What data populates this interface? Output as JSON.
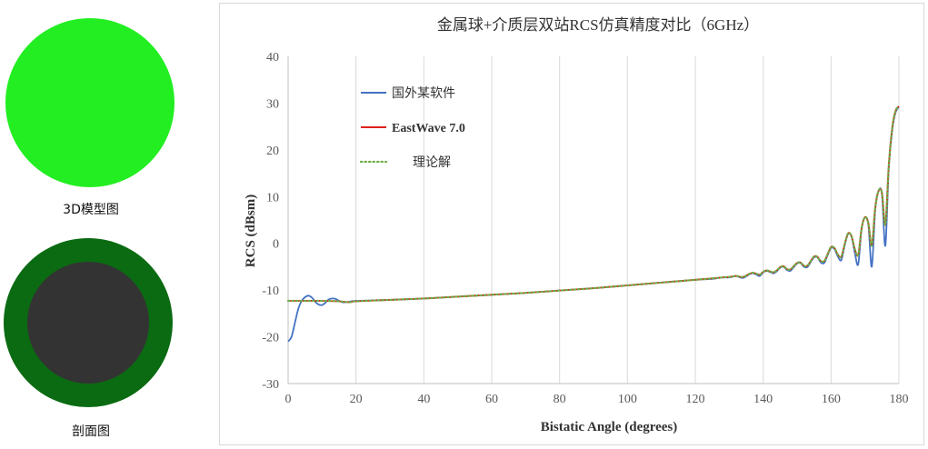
{
  "left_panel": {
    "model_caption": "3D模型图",
    "section_caption": "剖面图",
    "colors": {
      "sphere_outer": "#22ee22",
      "section_ring": "#0b6b12",
      "section_core": "#333333"
    }
  },
  "chart_data": {
    "type": "line",
    "title": "金属球+介质层双站RCS仿真精度对比（6GHz）",
    "xlabel": "Bistatic Angle (degrees)",
    "ylabel": "RCS (dBsm)",
    "xlim": [
      0,
      180
    ],
    "ylim": [
      -30,
      40
    ],
    "xticks": [
      0,
      20,
      40,
      60,
      80,
      100,
      120,
      140,
      160,
      180
    ],
    "yticks": [
      -30,
      -20,
      -10,
      0,
      10,
      20,
      30,
      40
    ],
    "grid": "vertical",
    "legend_position": "top-left",
    "series": [
      {
        "name": "国外某软件",
        "color": "#4472c4",
        "style": "solid",
        "x": [
          0,
          1,
          2,
          3,
          4,
          5,
          6,
          7,
          8,
          9,
          10,
          11,
          12,
          13,
          14,
          15,
          16,
          17,
          18,
          20,
          30,
          40,
          50,
          60,
          70,
          80,
          90,
          100,
          110,
          120,
          125,
          128,
          130,
          132,
          134,
          136,
          137,
          138,
          139,
          140,
          141,
          142,
          143,
          144,
          145,
          146,
          147,
          148,
          149,
          150,
          151,
          152,
          153,
          154,
          155,
          156,
          157,
          158,
          159,
          160,
          161,
          162,
          163,
          164,
          165,
          166,
          167,
          168,
          169,
          170,
          171,
          172,
          173,
          174,
          175,
          176,
          177,
          178,
          179,
          180
        ],
        "y": [
          -21,
          -20,
          -17,
          -14,
          -12.3,
          -11.5,
          -11.2,
          -11.6,
          -12.5,
          -13.1,
          -13.2,
          -12.7,
          -12.0,
          -11.8,
          -11.9,
          -12.3,
          -12.6,
          -12.6,
          -12.5,
          -12.3,
          -12.1,
          -11.8,
          -11.4,
          -11.0,
          -10.6,
          -10.1,
          -9.6,
          -9.0,
          -8.4,
          -7.8,
          -7.6,
          -7.3,
          -7.3,
          -7.0,
          -7.4,
          -6.6,
          -6.4,
          -6.7,
          -7.0,
          -6.2,
          -5.9,
          -6.1,
          -6.4,
          -6.0,
          -5.2,
          -5.0,
          -5.7,
          -5.9,
          -5.1,
          -4.3,
          -4.2,
          -5.0,
          -5.1,
          -4.0,
          -3.0,
          -3.0,
          -4.1,
          -4.2,
          -2.5,
          -1.0,
          -1.2,
          -2.8,
          -3.6,
          -0.5,
          2.0,
          1.5,
          -2.0,
          -4.5,
          3.0,
          5.5,
          4.0,
          -5.0,
          7.0,
          11.2,
          10.5,
          -0.5,
          16.0,
          24.0,
          28.0,
          29.2
        ]
      },
      {
        "name": "EastWave 7.0",
        "color": "#e0201b",
        "style": "solid",
        "x": [
          0,
          5,
          10,
          15,
          18,
          20,
          30,
          40,
          50,
          60,
          70,
          80,
          90,
          100,
          110,
          120,
          125,
          128,
          130,
          132,
          134,
          136,
          137,
          138,
          139,
          140,
          141,
          142,
          143,
          144,
          145,
          146,
          147,
          148,
          149,
          150,
          151,
          152,
          153,
          154,
          155,
          156,
          157,
          158,
          159,
          160,
          161,
          162,
          163,
          164,
          165,
          166,
          167,
          168,
          169,
          170,
          171,
          172,
          173,
          174,
          175,
          176,
          177,
          178,
          179,
          180
        ],
        "y": [
          -12.3,
          -12.3,
          -12.3,
          -12.4,
          -12.6,
          -12.4,
          -12.1,
          -11.8,
          -11.4,
          -11.0,
          -10.6,
          -10.1,
          -9.6,
          -9.0,
          -8.4,
          -7.8,
          -7.5,
          -7.3,
          -7.2,
          -7.0,
          -7.2,
          -6.5,
          -6.3,
          -6.5,
          -6.7,
          -6.1,
          -5.8,
          -6.0,
          -6.2,
          -5.8,
          -5.1,
          -4.9,
          -5.5,
          -5.6,
          -4.9,
          -4.2,
          -4.1,
          -4.8,
          -4.8,
          -3.8,
          -2.8,
          -2.9,
          -3.8,
          -3.8,
          -2.3,
          -0.8,
          -1.0,
          -2.4,
          -2.9,
          -0.2,
          2.1,
          1.6,
          -1.2,
          -2.5,
          3.2,
          5.6,
          4.3,
          -0.5,
          7.5,
          11.2,
          10.8,
          4.0,
          16.5,
          24.5,
          28.3,
          29.3
        ]
      },
      {
        "name": "理论解",
        "color": "#70ad47",
        "style": "dotted",
        "x": [
          0,
          5,
          10,
          15,
          18,
          20,
          30,
          40,
          50,
          60,
          70,
          80,
          90,
          100,
          110,
          120,
          125,
          128,
          130,
          132,
          134,
          136,
          137,
          138,
          139,
          140,
          141,
          142,
          143,
          144,
          145,
          146,
          147,
          148,
          149,
          150,
          151,
          152,
          153,
          154,
          155,
          156,
          157,
          158,
          159,
          160,
          161,
          162,
          163,
          164,
          165,
          166,
          167,
          168,
          169,
          170,
          171,
          172,
          173,
          174,
          175,
          176,
          177,
          178,
          179,
          180
        ],
        "y": [
          -12.3,
          -12.3,
          -12.3,
          -12.4,
          -12.6,
          -12.4,
          -12.1,
          -11.8,
          -11.4,
          -11.0,
          -10.6,
          -10.1,
          -9.6,
          -9.0,
          -8.4,
          -7.8,
          -7.5,
          -7.3,
          -7.2,
          -7.0,
          -7.2,
          -6.5,
          -6.3,
          -6.5,
          -6.7,
          -6.1,
          -5.8,
          -6.0,
          -6.2,
          -5.8,
          -5.1,
          -4.9,
          -5.5,
          -5.6,
          -4.9,
          -4.2,
          -4.1,
          -4.8,
          -4.8,
          -3.8,
          -2.8,
          -2.9,
          -3.8,
          -3.8,
          -2.3,
          -0.8,
          -1.0,
          -2.4,
          -2.9,
          -0.2,
          2.1,
          1.6,
          -1.2,
          -2.5,
          3.2,
          5.6,
          4.3,
          -0.5,
          7.5,
          11.2,
          10.8,
          4.0,
          16.5,
          24.5,
          28.3,
          29.3
        ]
      }
    ]
  }
}
